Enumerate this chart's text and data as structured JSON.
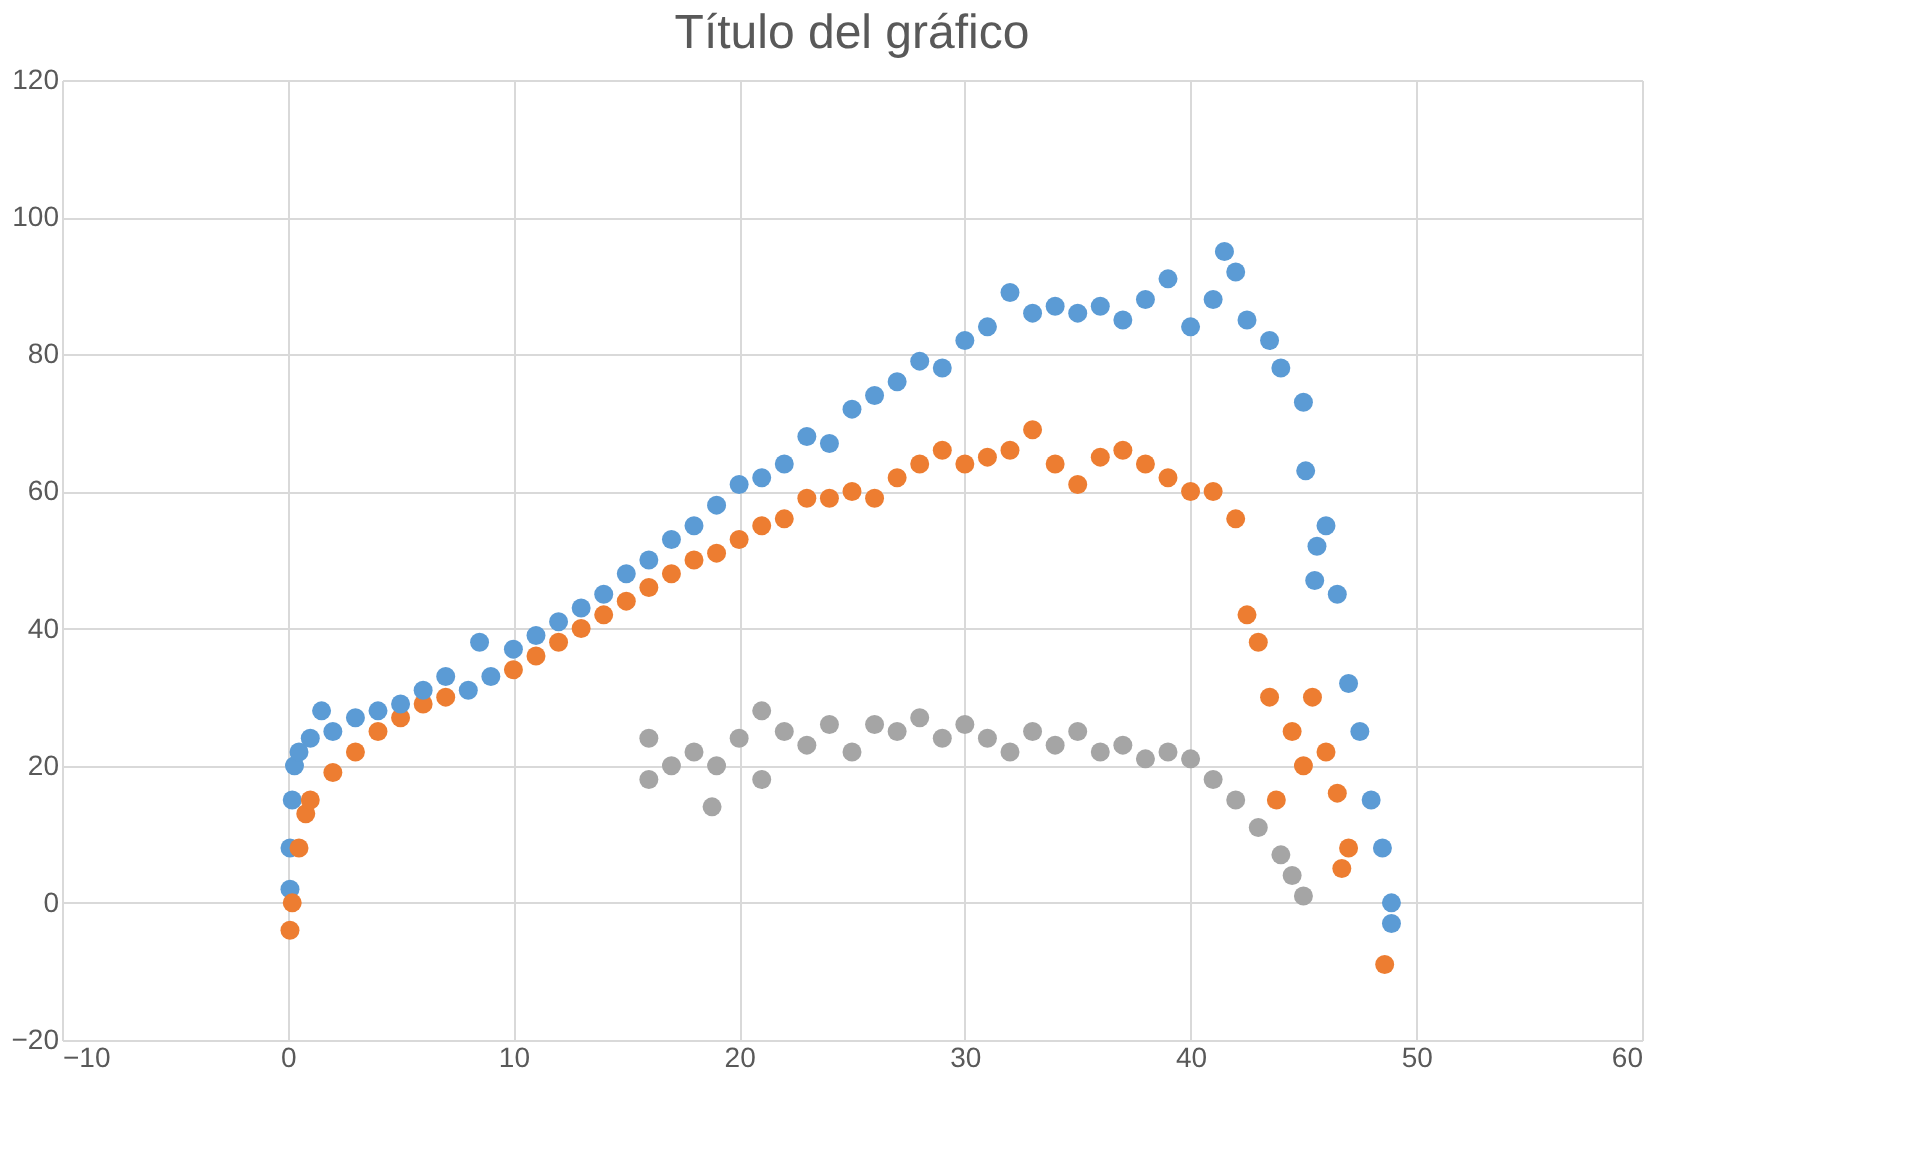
{
  "chart_data": {
    "type": "scatter",
    "title": "Título del gráfico",
    "xlim": [
      -10,
      60
    ],
    "xticks": [
      -10,
      0,
      10,
      20,
      30,
      40,
      50,
      60
    ],
    "ylim": [
      -20,
      120
    ],
    "yticks": [
      -20,
      0,
      20,
      40,
      60,
      80,
      100,
      120
    ],
    "grid": true,
    "marker": "circle",
    "series": [
      {
        "color": "#5b9bd5",
        "x": [
          0.1,
          0.1,
          0.2,
          0.3,
          0.5,
          1,
          1.5,
          2,
          3,
          4,
          5,
          6,
          7,
          8,
          8.5,
          9,
          10,
          11,
          12,
          13,
          14,
          15,
          16,
          17,
          18,
          19,
          20,
          21,
          22,
          23,
          24,
          25,
          26,
          27,
          28,
          29,
          30,
          31,
          32,
          33,
          34,
          35,
          36,
          37,
          38,
          39,
          40,
          41,
          41.5,
          42,
          42.5,
          43.5,
          44,
          45,
          45.1,
          45.5,
          45.6,
          46,
          46.5,
          47,
          47.5,
          48,
          48.5,
          48.9,
          48.9
        ],
        "values": [
          2,
          8,
          15,
          20,
          22,
          24,
          28,
          25,
          27,
          28,
          29,
          31,
          33,
          31,
          38,
          33,
          37,
          39,
          41,
          43,
          45,
          48,
          50,
          53,
          55,
          58,
          61,
          62,
          64,
          68,
          67,
          72,
          74,
          76,
          79,
          78,
          82,
          84,
          89,
          86,
          87,
          86,
          87,
          85,
          88,
          91,
          84,
          88,
          95,
          92,
          85,
          82,
          78,
          73,
          63,
          47,
          52,
          55,
          45,
          32,
          25,
          15,
          8,
          0,
          -3
        ]
      },
      {
        "color": "#ed7d31",
        "x": [
          0.1,
          0.2,
          0.5,
          0.8,
          1,
          2,
          3,
          4,
          5,
          6,
          7,
          8,
          9,
          10,
          11,
          12,
          13,
          14,
          15,
          16,
          17,
          18,
          19,
          20,
          21,
          22,
          23,
          24,
          25,
          26,
          27,
          28,
          29,
          30,
          31,
          32,
          33,
          34,
          35,
          36,
          37,
          38,
          39,
          40,
          41,
          42,
          42.5,
          43,
          43.5,
          43.8,
          44.5,
          45,
          45.4,
          46,
          46.5,
          46.7,
          47,
          48,
          48.6
        ],
        "values": [
          -4,
          0,
          8,
          13,
          15,
          19,
          22,
          25,
          27,
          29,
          30,
          null,
          null,
          34,
          36,
          38,
          40,
          42,
          44,
          46,
          48,
          50,
          51,
          53,
          55,
          56,
          59,
          59,
          60,
          59,
          62,
          64,
          66,
          64,
          65,
          66,
          69,
          64,
          61,
          65,
          66,
          64,
          62,
          60,
          60,
          56,
          42,
          38,
          30,
          15,
          25,
          20,
          30,
          22,
          16,
          5,
          8,
          null,
          -9
        ]
      },
      {
        "color": "#a5a5a5",
        "x": [
          16,
          16,
          17,
          18,
          18.8,
          19,
          20,
          21,
          21,
          22,
          23,
          24,
          25,
          26,
          27,
          28,
          29,
          30,
          31,
          32,
          33,
          34,
          35,
          36,
          37,
          38,
          39,
          40,
          41,
          42,
          43,
          44,
          44.5,
          45
        ],
        "values": [
          24,
          18,
          20,
          22,
          14,
          20,
          24,
          28,
          18,
          25,
          23,
          26,
          22,
          26,
          25,
          27,
          24,
          26,
          24,
          22,
          25,
          23,
          25,
          22,
          23,
          21,
          22,
          21,
          18,
          15,
          11,
          7,
          4,
          1
        ]
      }
    ]
  }
}
